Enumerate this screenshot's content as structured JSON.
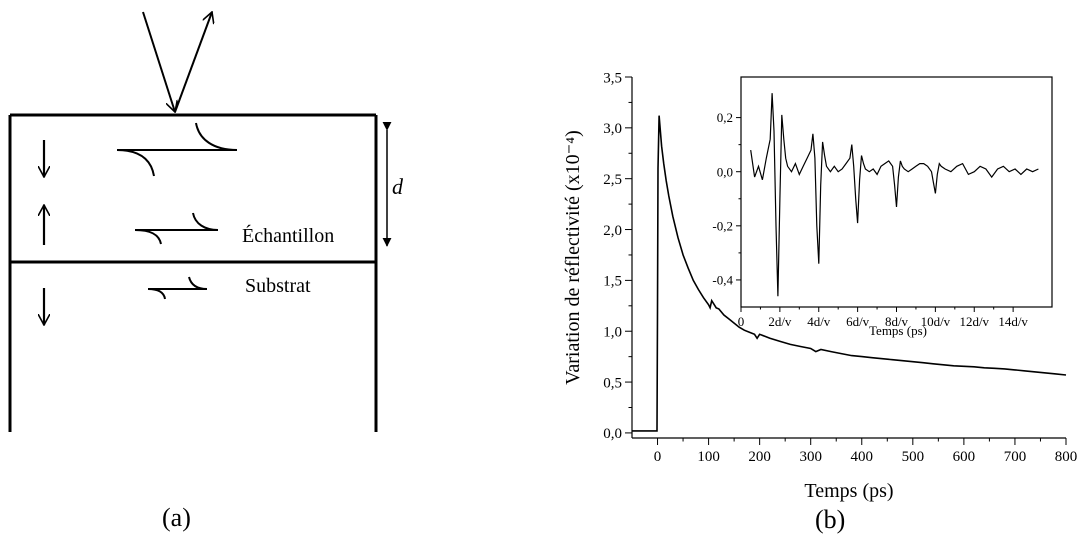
{
  "panel_a": {
    "label": "(a)",
    "thickness_label": "d",
    "sample_label": "Échantillon",
    "substrate_label": "Substrat"
  },
  "panel_b": {
    "label": "(b)"
  },
  "chart_data": [
    {
      "type": "line",
      "title": "",
      "xlabel": "Temps (ps)",
      "ylabel": "Variation de réflectivité (x10⁻⁴)",
      "xlim": [
        -50,
        800
      ],
      "ylim": [
        -0.05,
        3.5
      ],
      "x_ticks": [
        0,
        100,
        200,
        300,
        400,
        500,
        600,
        700,
        800
      ],
      "x_tick_labels": [
        "0",
        "100",
        "200",
        "300",
        "400",
        "500",
        "600",
        "700",
        "800"
      ],
      "y_ticks": [
        0,
        0.5,
        1.0,
        1.5,
        2.0,
        2.5,
        3.0,
        3.5
      ],
      "y_tick_labels": [
        "0,0",
        "0,5",
        "1,0",
        "1,5",
        "2,0",
        "2,5",
        "3,0",
        "3,5"
      ],
      "grid": false,
      "series": [
        {
          "x": [
            -50,
            -20,
            -5,
            -1,
            0,
            1,
            3,
            5,
            8,
            12,
            17,
            22,
            30,
            40,
            50,
            60,
            70,
            80,
            90,
            100,
            103,
            106,
            110,
            115,
            120,
            130,
            140,
            150,
            160,
            170,
            180,
            190,
            195,
            200,
            205,
            210,
            220,
            240,
            260,
            280,
            300,
            310,
            320,
            340,
            360,
            380,
            400,
            420,
            440,
            460,
            480,
            500,
            520,
            540,
            560,
            580,
            600,
            620,
            640,
            660,
            680,
            700,
            720,
            740,
            760,
            780,
            800
          ],
          "y": [
            0.02,
            0.02,
            0.02,
            0.02,
            1.2,
            2.6,
            3.12,
            3.0,
            2.82,
            2.65,
            2.48,
            2.33,
            2.13,
            1.92,
            1.75,
            1.62,
            1.5,
            1.41,
            1.33,
            1.26,
            1.23,
            1.3,
            1.27,
            1.23,
            1.22,
            1.16,
            1.12,
            1.08,
            1.04,
            1.01,
            0.99,
            0.97,
            0.93,
            0.97,
            0.96,
            0.95,
            0.93,
            0.9,
            0.87,
            0.85,
            0.83,
            0.8,
            0.82,
            0.8,
            0.78,
            0.76,
            0.75,
            0.74,
            0.73,
            0.72,
            0.71,
            0.7,
            0.69,
            0.68,
            0.67,
            0.66,
            0.655,
            0.65,
            0.64,
            0.635,
            0.63,
            0.62,
            0.61,
            0.6,
            0.59,
            0.58,
            0.57
          ]
        }
      ]
    },
    {
      "type": "line",
      "title": "",
      "xlabel": "Temps (ps)",
      "ylabel": "",
      "xlim": [
        0,
        16
      ],
      "ylim": [
        -0.5,
        0.35
      ],
      "x_ticks": [
        0,
        2,
        4,
        6,
        8,
        10,
        12,
        14
      ],
      "x_tick_labels": [
        "0",
        "2d/v",
        "4d/v",
        "6d/v",
        "8d/v",
        "10d/v",
        "12d/v",
        "14d/v"
      ],
      "y_ticks": [
        -0.4,
        -0.2,
        0.0,
        0.2
      ],
      "y_tick_labels": [
        "-0,4",
        "-0,2",
        "0,0",
        "0,2"
      ],
      "grid": false,
      "series": [
        {
          "x": [
            0.5,
            0.7,
            0.9,
            1.1,
            1.3,
            1.5,
            1.6,
            1.7,
            1.8,
            1.9,
            2.0,
            2.1,
            2.2,
            2.3,
            2.4,
            2.6,
            2.8,
            3.0,
            3.2,
            3.4,
            3.6,
            3.7,
            3.8,
            3.9,
            4.0,
            4.1,
            4.2,
            4.3,
            4.4,
            4.6,
            4.8,
            5.0,
            5.2,
            5.4,
            5.6,
            5.7,
            5.8,
            5.9,
            6.0,
            6.1,
            6.2,
            6.3,
            6.4,
            6.6,
            6.8,
            7.0,
            7.2,
            7.4,
            7.6,
            7.8,
            7.9,
            8.0,
            8.1,
            8.2,
            8.3,
            8.4,
            8.6,
            8.8,
            9.0,
            9.2,
            9.4,
            9.6,
            9.8,
            9.9,
            10.0,
            10.1,
            10.2,
            10.3,
            10.5,
            10.8,
            11.1,
            11.4,
            11.7,
            12.0,
            12.3,
            12.6,
            12.9,
            13.2,
            13.5,
            13.8,
            14.1,
            14.4,
            14.7,
            15.0,
            15.3
          ],
          "y": [
            0.08,
            -0.02,
            0.02,
            -0.03,
            0.05,
            0.12,
            0.29,
            0.15,
            -0.2,
            -0.46,
            -0.1,
            0.21,
            0.12,
            0.05,
            0.02,
            0.0,
            0.03,
            -0.01,
            0.02,
            0.05,
            0.08,
            0.14,
            0.05,
            -0.2,
            -0.34,
            -0.05,
            0.11,
            0.06,
            0.02,
            0.0,
            0.02,
            0.0,
            0.01,
            0.03,
            0.05,
            0.1,
            0.02,
            -0.1,
            -0.19,
            -0.03,
            0.06,
            0.03,
            0.01,
            0.0,
            0.01,
            -0.01,
            0.02,
            0.03,
            0.04,
            0.02,
            -0.05,
            -0.13,
            -0.02,
            0.04,
            0.02,
            0.01,
            0.0,
            0.01,
            0.02,
            0.03,
            0.03,
            0.02,
            0.0,
            -0.04,
            -0.08,
            -0.01,
            0.03,
            0.02,
            0.01,
            0.0,
            0.02,
            0.03,
            -0.01,
            0.0,
            0.02,
            0.01,
            -0.02,
            0.01,
            0.02,
            0.0,
            0.01,
            -0.01,
            0.01,
            0.0,
            0.01
          ]
        }
      ]
    }
  ]
}
